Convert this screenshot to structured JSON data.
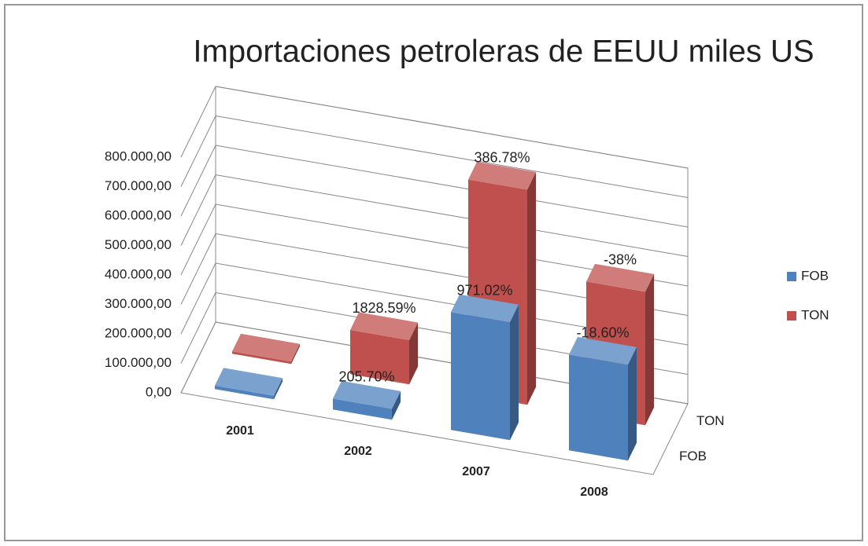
{
  "chart_data": {
    "type": "bar3d",
    "title": "Importaciones petroleras de EEUU miles US",
    "categories": [
      "2001",
      "2002",
      "2007",
      "2008"
    ],
    "series": [
      {
        "name": "FOB",
        "color": "#4f81bd",
        "values": [
          12000,
          37000,
          400000,
          325000
        ],
        "labels": [
          null,
          "205.70%",
          "971.02%",
          "-18.60%"
        ]
      },
      {
        "name": "TON",
        "color": "#c0504d",
        "values": [
          8000,
          150000,
          730000,
          453000
        ],
        "labels": [
          null,
          "1828.59%",
          "386.78%",
          "-38%"
        ]
      }
    ],
    "ylim": [
      0,
      800000
    ],
    "yticks": [
      {
        "value": 0,
        "label": "0,00"
      },
      {
        "value": 100000,
        "label": "100.000,00"
      },
      {
        "value": 200000,
        "label": "200.000,00"
      },
      {
        "value": 300000,
        "label": "300.000,00"
      },
      {
        "value": 400000,
        "label": "400.000,00"
      },
      {
        "value": 500000,
        "label": "500.000,00"
      },
      {
        "value": 600000,
        "label": "600.000,00"
      },
      {
        "value": 700000,
        "label": "700.000,00"
      },
      {
        "value": 800000,
        "label": "800.000,00"
      }
    ],
    "grid": true,
    "legend": "right"
  }
}
